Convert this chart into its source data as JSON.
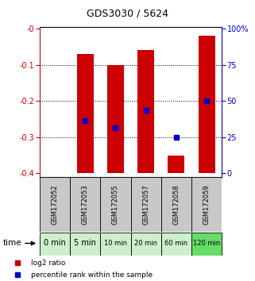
{
  "title": "GDS3030 / 5624",
  "samples": [
    "GSM172052",
    "GSM172053",
    "GSM172055",
    "GSM172057",
    "GSM172058",
    "GSM172059"
  ],
  "times": [
    "0 min",
    "5 min",
    "10 min",
    "20 min",
    "60 min",
    "120 min"
  ],
  "bar_bottoms": [
    -0.4,
    -0.4,
    -0.4,
    -0.4,
    -0.4,
    -0.4
  ],
  "bar_tops": [
    -0.4,
    -0.07,
    -0.1,
    -0.06,
    -0.35,
    -0.02
  ],
  "percentile_values": [
    null,
    -0.255,
    -0.275,
    -0.225,
    -0.3,
    -0.2
  ],
  "ylim": [
    -0.41,
    0.005
  ],
  "yticks_left": [
    0.0,
    -0.1,
    -0.2,
    -0.3,
    -0.4
  ],
  "ytick_labels_left": [
    "-0",
    "-0.1",
    "-0.2",
    "-0.3",
    "-0.4"
  ],
  "yticks_right": [
    0.0,
    -0.1,
    -0.2,
    -0.3,
    -0.4
  ],
  "ytick_labels_right": [
    "100%",
    "75",
    "50",
    "25",
    "0"
  ],
  "bar_color": "#cc0000",
  "marker_color": "#0000cc",
  "label_color_left": "#cc0000",
  "label_color_right": "#0000cc",
  "bg_sample_label": "#c8c8c8",
  "bg_time_light": "#ccf0cc",
  "bg_time_dark": "#66dd66",
  "time_label": "time",
  "legend_bar": "log2 ratio",
  "legend_marker": "percentile rank within the sample",
  "title_fontsize": 9,
  "tick_fontsize": 7,
  "sample_fontsize": 6,
  "time_fontsize": 7
}
